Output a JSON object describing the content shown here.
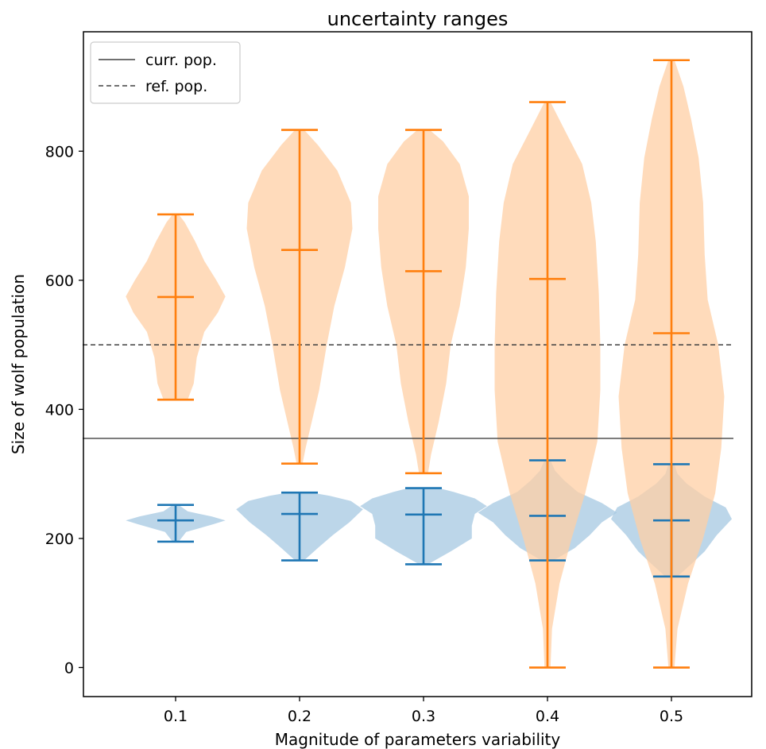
{
  "chart_data": {
    "type": "violin",
    "title": "uncertainty ranges",
    "xlabel": "Magnitude of parameters variability",
    "ylabel": "Size of wolf population",
    "categories": [
      "0.1",
      "0.2",
      "0.3",
      "0.4",
      "0.5"
    ],
    "yticks": [
      "0",
      "200",
      "400",
      "600",
      "800"
    ],
    "ylim": [
      -45,
      985
    ],
    "grid": false,
    "legend_position": "top-left",
    "reference_lines": [
      {
        "name": "curr. pop.",
        "value": 355,
        "style": "solid",
        "color": "#404040"
      },
      {
        "name": "ref. pop.",
        "value": 500,
        "style": "dashed",
        "color": "#404040"
      }
    ],
    "series": [
      {
        "color": "#1f77b4",
        "fill": "#a6c8e2",
        "stats": [
          {
            "min": 195,
            "mean": 228,
            "max": 252
          },
          {
            "min": 166,
            "mean": 238,
            "max": 271
          },
          {
            "min": 160,
            "mean": 237,
            "max": 278
          },
          {
            "min": 166,
            "mean": 235,
            "max": 321
          },
          {
            "min": 141,
            "mean": 228,
            "max": 315
          }
        ],
        "density": [
          [
            [
              195,
              0.2
            ],
            [
              210,
              0.7
            ],
            [
              222,
              2.5
            ],
            [
              228,
              3.3
            ],
            [
              234,
              2.4
            ],
            [
              242,
              0.8
            ],
            [
              252,
              0.2
            ]
          ],
          [
            [
              166,
              0.3
            ],
            [
              185,
              1.2
            ],
            [
              205,
              2.2
            ],
            [
              225,
              3.3
            ],
            [
              245,
              4.2
            ],
            [
              258,
              3.4
            ],
            [
              266,
              2.0
            ],
            [
              271,
              0.8
            ]
          ],
          [
            [
              160,
              0.3
            ],
            [
              180,
              1.8
            ],
            [
              200,
              3.2
            ],
            [
              220,
              3.2
            ],
            [
              238,
              3.4
            ],
            [
              250,
              4.2
            ],
            [
              262,
              3.4
            ],
            [
              272,
              2.0
            ],
            [
              278,
              1.0
            ]
          ],
          [
            [
              166,
              0.4
            ],
            [
              185,
              1.8
            ],
            [
              205,
              2.8
            ],
            [
              225,
              3.6
            ],
            [
              240,
              4.6
            ],
            [
              255,
              3.6
            ],
            [
              272,
              2.0
            ],
            [
              290,
              1.1
            ],
            [
              305,
              0.5
            ],
            [
              321,
              0.2
            ]
          ],
          [
            [
              141,
              0.4
            ],
            [
              160,
              1.3
            ],
            [
              180,
              2.2
            ],
            [
              205,
              3.0
            ],
            [
              230,
              4.0
            ],
            [
              248,
              3.6
            ],
            [
              265,
              2.2
            ],
            [
              285,
              1.0
            ],
            [
              300,
              0.4
            ],
            [
              315,
              0.2
            ]
          ]
        ]
      },
      {
        "color": "#ff7f0e",
        "fill": "#ffcfa4",
        "stats": [
          {
            "min": 415,
            "mean": 574,
            "max": 702
          },
          {
            "min": 316,
            "mean": 647,
            "max": 833
          },
          {
            "min": 301,
            "mean": 614,
            "max": 833
          },
          {
            "min": 0,
            "mean": 602,
            "max": 876
          },
          {
            "min": 0,
            "mean": 518,
            "max": 941
          }
        ],
        "density": [
          [
            [
              415,
              0.8
            ],
            [
              440,
              1.2
            ],
            [
              480,
              1.4
            ],
            [
              520,
              1.9
            ],
            [
              550,
              2.8
            ],
            [
              575,
              3.3
            ],
            [
              600,
              2.7
            ],
            [
              630,
              1.9
            ],
            [
              660,
              1.3
            ],
            [
              690,
              0.6
            ],
            [
              702,
              0.2
            ]
          ],
          [
            [
              316,
              0.2
            ],
            [
              340,
              0.4
            ],
            [
              380,
              0.8
            ],
            [
              430,
              1.3
            ],
            [
              500,
              1.8
            ],
            [
              560,
              2.3
            ],
            [
              620,
              3.0
            ],
            [
              680,
              3.5
            ],
            [
              720,
              3.4
            ],
            [
              770,
              2.5
            ],
            [
              810,
              1.2
            ],
            [
              833,
              0.3
            ]
          ],
          [
            [
              301,
              0.3
            ],
            [
              330,
              0.5
            ],
            [
              380,
              1.0
            ],
            [
              440,
              1.5
            ],
            [
              500,
              1.8
            ],
            [
              560,
              2.4
            ],
            [
              620,
              2.8
            ],
            [
              680,
              3.0
            ],
            [
              730,
              3.0
            ],
            [
              780,
              2.4
            ],
            [
              815,
              1.3
            ],
            [
              833,
              0.4
            ]
          ],
          [
            [
              0,
              0.2
            ],
            [
              60,
              0.3
            ],
            [
              130,
              0.8
            ],
            [
              200,
              1.6
            ],
            [
              270,
              2.5
            ],
            [
              350,
              3.3
            ],
            [
              430,
              3.5
            ],
            [
              500,
              3.5
            ],
            [
              580,
              3.4
            ],
            [
              660,
              3.2
            ],
            [
              720,
              2.9
            ],
            [
              780,
              2.3
            ],
            [
              830,
              1.2
            ],
            [
              876,
              0.2
            ]
          ],
          [
            [
              0,
              0.2
            ],
            [
              60,
              0.4
            ],
            [
              130,
              1.1
            ],
            [
              200,
              2.1
            ],
            [
              270,
              2.9
            ],
            [
              340,
              3.3
            ],
            [
              420,
              3.5
            ],
            [
              500,
              3.1
            ],
            [
              570,
              2.4
            ],
            [
              640,
              2.2
            ],
            [
              720,
              2.1
            ],
            [
              790,
              1.8
            ],
            [
              850,
              1.3
            ],
            [
              900,
              0.8
            ],
            [
              941,
              0.2
            ]
          ]
        ]
      }
    ]
  }
}
